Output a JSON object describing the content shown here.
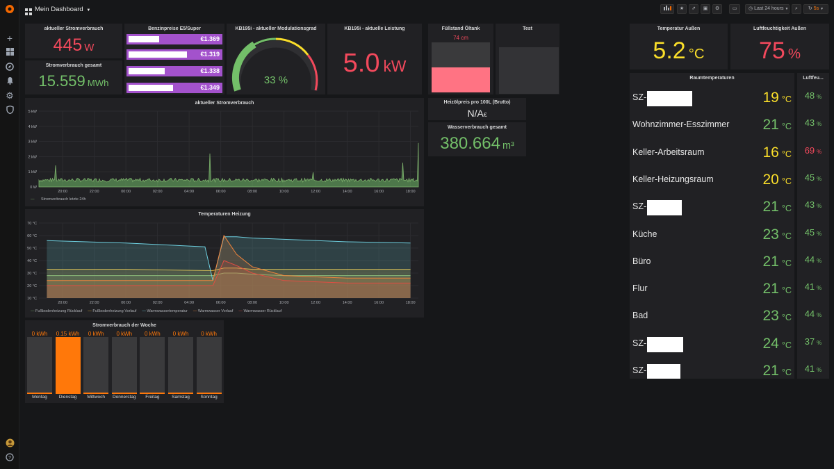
{
  "header": {
    "title": "Mein Dashboard",
    "time_range": "Last 24 hours",
    "refresh": "5s"
  },
  "colors": {
    "red": "#f2495c",
    "green": "#73bf69",
    "yellow": "#fade2a",
    "orange": "#ff780a",
    "purple": "#a352cc",
    "blue": "#8ab8ff",
    "panel": "#212124"
  },
  "panels": {
    "power_now": {
      "title": "aktueller Stromverbrauch",
      "value": "445",
      "unit": "W"
    },
    "power_total": {
      "title": "Stromverbrauch gesamt",
      "value": "15.559",
      "unit": "MWh"
    },
    "fuel": {
      "title": "Benzinpreise E5/Super",
      "rows": [
        {
          "price": "€1.369",
          "level": 0.98
        },
        {
          "price": "€1.319",
          "level": 0.95
        },
        {
          "price": "€1.338",
          "level": 0.9
        },
        {
          "price": "€1.349",
          "level": 0.94
        }
      ]
    },
    "modulation": {
      "title": "KB195i - aktueller Modulationsgrad",
      "value": "33 %",
      "percent": 33
    },
    "power_heat": {
      "title": "KB195i - aktuelle Leistung",
      "value": "5.0",
      "unit": "kW"
    },
    "oil": {
      "title": "Füllstand Öltank",
      "value": "74 cm",
      "fill": 0.55
    },
    "test": {
      "title": "Test"
    },
    "oil_price": {
      "title": "Heizölpreis pro 100L (Brutto)",
      "value": "N/A",
      "unit": "€"
    },
    "water": {
      "title": "Wasserverbrauch gesamt",
      "value": "380.664",
      "unit": "m³"
    },
    "temp_out": {
      "title": "Temperatur Außen",
      "value": "5.2",
      "unit": "°C"
    },
    "hum_out": {
      "title": "Luftfeuchtigkeit Außen",
      "value": "75",
      "unit": "%"
    },
    "room_temps": {
      "title": "Raumtemperaturen",
      "rows": [
        {
          "name": "SZ-",
          "value": "19",
          "color": "#fade2a",
          "redact": 65
        },
        {
          "name": "Wohnzimmer-Esszimmer",
          "value": "21",
          "color": "#73bf69",
          "redact": 0
        },
        {
          "name": "Keller-Arbeitsraum",
          "value": "16",
          "color": "#fade2a",
          "redact": 0
        },
        {
          "name": "Keller-Heizungsraum",
          "value": "20",
          "color": "#fade2a",
          "redact": 0
        },
        {
          "name": "SZ-",
          "value": "21",
          "color": "#73bf69",
          "redact": 50
        },
        {
          "name": "Küche",
          "value": "23",
          "color": "#73bf69",
          "redact": 0
        },
        {
          "name": "Büro",
          "value": "21",
          "color": "#73bf69",
          "redact": 0
        },
        {
          "name": "Flur",
          "value": "21",
          "color": "#73bf69",
          "redact": 0
        },
        {
          "name": "Bad",
          "value": "23",
          "color": "#73bf69",
          "redact": 0
        },
        {
          "name": "SZ-",
          "value": "24",
          "color": "#73bf69",
          "redact": 52
        },
        {
          "name": "SZ-",
          "value": "21",
          "color": "#73bf69",
          "redact": 48
        }
      ],
      "unit": "°C"
    },
    "room_hum": {
      "title": "Luftfeu...",
      "rows": [
        {
          "value": "48",
          "color": "#73bf69"
        },
        {
          "value": "43",
          "color": "#73bf69"
        },
        {
          "value": "69",
          "color": "#f2495c"
        },
        {
          "value": "45",
          "color": "#73bf69"
        },
        {
          "value": "43",
          "color": "#73bf69"
        },
        {
          "value": "45",
          "color": "#73bf69"
        },
        {
          "value": "44",
          "color": "#73bf69"
        },
        {
          "value": "41",
          "color": "#73bf69"
        },
        {
          "value": "44",
          "color": "#73bf69"
        },
        {
          "value": "37",
          "color": "#73bf69"
        },
        {
          "value": "41",
          "color": "#73bf69"
        }
      ],
      "unit": "%"
    },
    "power_graph": {
      "title": "aktueller Stromverbrauch",
      "legend": "Stromverbrauch letzte 24h"
    },
    "heat_graph": {
      "title": "Temperaturen Heizung",
      "legend": [
        "Fußbodenheizung Rücklauf",
        "Fußbodenheizung Vorlauf",
        "Warmwassertemperatur",
        "Warmwasser Vorlauf",
        "Warmwasser Rücklauf"
      ],
      "legend_colors": [
        "#7eb26d",
        "#eab839",
        "#6ed0e0",
        "#ef843c",
        "#e24d42"
      ]
    },
    "week": {
      "title": "Stromverbrauch der Woche",
      "days": [
        {
          "day": "Montag",
          "value": "0 kWh",
          "active": false
        },
        {
          "day": "Dienstag",
          "value": "0.15 kWh",
          "active": true
        },
        {
          "day": "Mittwoch",
          "value": "0 kWh",
          "active": false
        },
        {
          "day": "Donnerstag",
          "value": "0 kWh",
          "active": false
        },
        {
          "day": "Freitag",
          "value": "0 kWh",
          "active": false
        },
        {
          "day": "Samstag",
          "value": "0 kWh",
          "active": false
        },
        {
          "day": "Sonntag",
          "value": "0 kWh",
          "active": false
        }
      ]
    }
  },
  "chart_data": [
    {
      "type": "area",
      "title": "aktueller Stromverbrauch",
      "x_ticks": [
        "20:00",
        "22:00",
        "00:00",
        "02:00",
        "04:00",
        "06:00",
        "08:00",
        "10:00",
        "12:00",
        "14:00",
        "16:00",
        "18:00"
      ],
      "y_ticks": [
        "0 W",
        "1 kW",
        "2 kW",
        "3 kW",
        "4 kW",
        "5 kW"
      ],
      "ylim": [
        0,
        5
      ],
      "series": [
        {
          "name": "Stromverbrauch letzte 24h",
          "x_hours": [
            19,
            20,
            21,
            22,
            23,
            24,
            25,
            26,
            27,
            28,
            29,
            29.3,
            30,
            31,
            32,
            33,
            34,
            35,
            36,
            37,
            38,
            39,
            40,
            41,
            41.5,
            42,
            42.5,
            43
          ],
          "values_kw": [
            0.5,
            0.45,
            0.5,
            0.45,
            0.5,
            0.45,
            0.4,
            0.45,
            0.45,
            0.4,
            0.5,
            2.2,
            0.5,
            0.45,
            0.6,
            0.5,
            0.45,
            0.5,
            0.45,
            0.6,
            0.5,
            0.5,
            0.45,
            0.5,
            1.6,
            0.5,
            2.9,
            0.5
          ]
        }
      ]
    },
    {
      "type": "line",
      "title": "Temperaturen Heizung",
      "x_ticks": [
        "20:00",
        "22:00",
        "00:00",
        "02:00",
        "04:00",
        "06:00",
        "08:00",
        "10:00",
        "12:00",
        "14:00",
        "16:00",
        "18:00"
      ],
      "y_ticks": [
        "10 °C",
        "20 °C",
        "30 °C",
        "40 °C",
        "50 °C",
        "60 °C",
        "70 °C"
      ],
      "ylim": [
        10,
        70
      ],
      "x_hours": [
        19,
        24,
        29,
        29.5,
        30.2,
        31,
        32,
        34,
        38,
        42
      ],
      "series": [
        {
          "name": "Fußbodenheizung Rücklauf",
          "values": [
            28,
            28,
            28,
            28,
            30,
            30,
            29,
            28,
            28,
            28
          ]
        },
        {
          "name": "Fußbodenheizung Vorlauf",
          "values": [
            33,
            33,
            32,
            32,
            34,
            34,
            33,
            33,
            33,
            33
          ]
        },
        {
          "name": "Warmwassertemperatur",
          "values": [
            56,
            54,
            51,
            24,
            59,
            59,
            58,
            57,
            55,
            54
          ]
        },
        {
          "name": "Warmwasser Vorlauf",
          "values": [
            24,
            24,
            24,
            24,
            60,
            45,
            35,
            28,
            26,
            26
          ]
        },
        {
          "name": "Warmwasser Rücklauf",
          "values": [
            20,
            20,
            20,
            20,
            40,
            36,
            30,
            24,
            22,
            22
          ]
        }
      ]
    },
    {
      "type": "bar",
      "title": "Stromverbrauch der Woche",
      "categories": [
        "Montag",
        "Dienstag",
        "Mittwoch",
        "Donnerstag",
        "Freitag",
        "Samstag",
        "Sonntag"
      ],
      "values": [
        0,
        0.15,
        0,
        0,
        0,
        0,
        0
      ]
    }
  ]
}
